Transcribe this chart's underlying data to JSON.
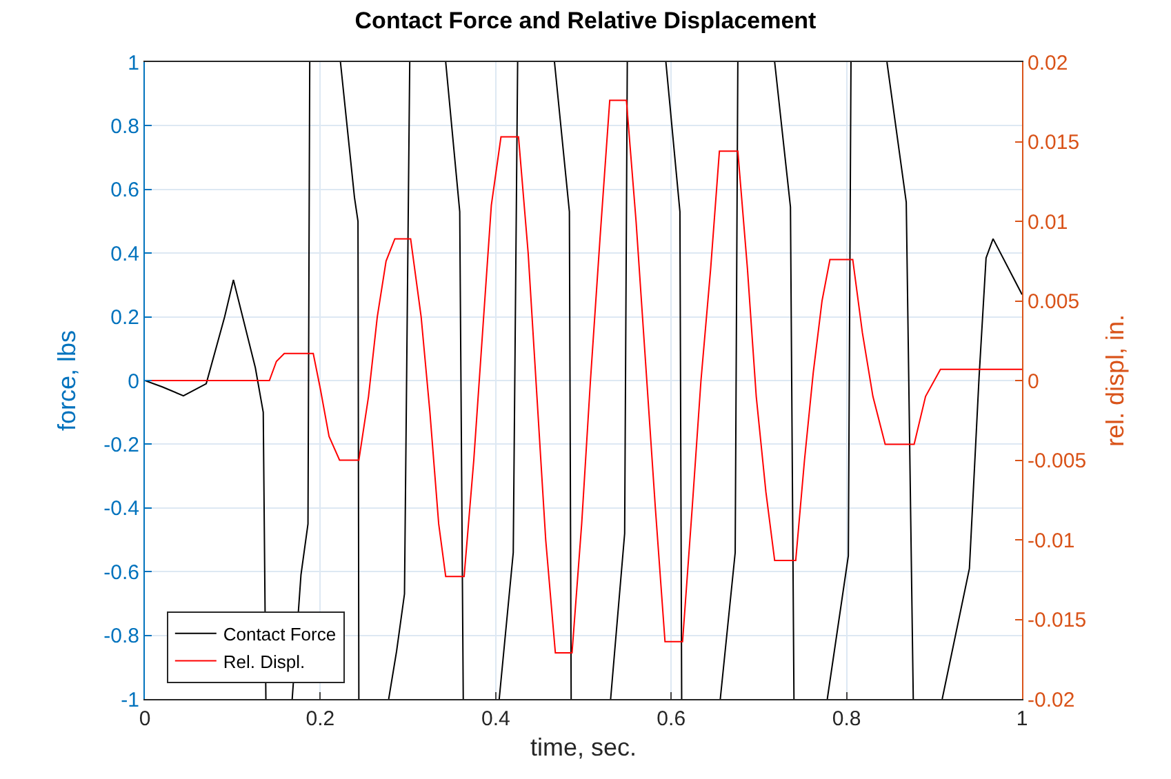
{
  "chart_data": {
    "type": "line",
    "title": "Contact Force and Relative Displacement",
    "xlabel": "time, sec.",
    "ylabel": "force, lbs",
    "y2label": "rel. displ, in.",
    "xlim": [
      0,
      1
    ],
    "xticks": [
      0,
      0.2,
      0.4,
      0.6,
      0.8,
      1
    ],
    "ylim": [
      -1,
      1
    ],
    "yticks": [
      -1,
      -0.8,
      -0.6,
      -0.4,
      -0.2,
      0,
      0.2,
      0.4,
      0.6,
      0.8,
      1
    ],
    "y2lim": [
      -0.02,
      0.02
    ],
    "y2ticks": [
      -0.02,
      -0.015,
      -0.01,
      -0.005,
      0,
      0.005,
      0.01,
      0.015,
      0.02
    ],
    "grid": true,
    "legend": "bottom left",
    "line_style": "solid",
    "series": [
      {
        "name": "Contact Force",
        "color": "#000000",
        "x": [
          0,
          0.02,
          0.044,
          0.07,
          0.091,
          0.101,
          0.126,
          0.135,
          0.138,
          0.153,
          0.168,
          0.178,
          0.186,
          0.188,
          0.205,
          0.223,
          0.239,
          0.243,
          0.244,
          0.26,
          0.278,
          0.287,
          0.296,
          0.302,
          0.32,
          0.343,
          0.359,
          0.363,
          0.38,
          0.404,
          0.42,
          0.425,
          0.45,
          0.467,
          0.484,
          0.486,
          0.51,
          0.531,
          0.547,
          0.55,
          0.57,
          0.594,
          0.61,
          0.612,
          0.63,
          0.656,
          0.673,
          0.676,
          0.7,
          0.718,
          0.736,
          0.74,
          0.76,
          0.778,
          0.802,
          0.805,
          0.825,
          0.846,
          0.868,
          0.876,
          0.89,
          0.909,
          0.94,
          0.951,
          0.959,
          0.967,
          1
        ],
        "values": [
          0,
          -0.02,
          -0.048,
          -0.01,
          0.2,
          0.316,
          0.04,
          -0.1,
          -1,
          null,
          -1,
          -0.61,
          -0.45,
          1,
          null,
          1,
          0.575,
          0.5,
          -1,
          null,
          -1,
          -0.85,
          -0.67,
          1,
          null,
          1,
          0.53,
          -1,
          null,
          -1,
          -0.54,
          1,
          null,
          1,
          0.53,
          -1,
          null,
          -1,
          -0.48,
          1,
          null,
          1,
          0.53,
          -1,
          null,
          -1,
          -0.54,
          1,
          null,
          1,
          0.545,
          -1,
          null,
          -1,
          -0.55,
          1,
          null,
          1,
          0.56,
          -1,
          null,
          -1,
          -0.59,
          0.01,
          0.385,
          0.445,
          0.27
        ]
      },
      {
        "name": "Rel. Displ.",
        "color": "#ff0000",
        "axis": "y2",
        "x": [
          0,
          0.142,
          0.15,
          0.159,
          0.192,
          0.2,
          0.21,
          0.222,
          0.244,
          0.255,
          0.265,
          0.275,
          0.285,
          0.303,
          0.315,
          0.325,
          0.335,
          0.343,
          0.364,
          0.375,
          0.385,
          0.395,
          0.406,
          0.426,
          0.437,
          0.447,
          0.457,
          0.468,
          0.487,
          0.498,
          0.508,
          0.519,
          0.53,
          0.549,
          0.56,
          0.571,
          0.582,
          0.593,
          0.613,
          0.624,
          0.634,
          0.645,
          0.655,
          0.676,
          0.687,
          0.697,
          0.708,
          0.718,
          0.742,
          0.752,
          0.762,
          0.772,
          0.781,
          0.807,
          0.818,
          0.83,
          0.844,
          0.877,
          0.89,
          0.907,
          1
        ],
        "values": [
          0,
          0,
          0.0012,
          0.0017,
          0.0017,
          -0.0005,
          -0.0035,
          -0.005,
          -0.005,
          -0.001,
          0.004,
          0.0075,
          0.0089,
          0.0089,
          0.004,
          -0.002,
          -0.009,
          -0.0123,
          -0.0123,
          -0.005,
          0.003,
          0.011,
          0.0153,
          0.0153,
          0.008,
          -0.001,
          -0.01,
          -0.0171,
          -0.0171,
          -0.009,
          0,
          0.009,
          0.0176,
          0.0176,
          0.01,
          0.001,
          -0.008,
          -0.0164,
          -0.0164,
          -0.008,
          0,
          0.007,
          0.0144,
          0.0144,
          0.007,
          -0.001,
          -0.007,
          -0.0113,
          -0.0113,
          -0.005,
          0.0005,
          0.005,
          0.0076,
          0.0076,
          0.003,
          -0.001,
          -0.004,
          -0.004,
          -0.001,
          0.0007,
          0.0007
        ]
      }
    ]
  }
}
